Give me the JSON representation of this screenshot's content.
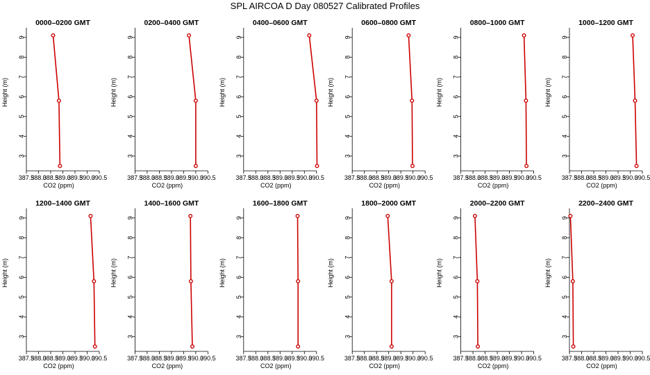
{
  "title": "SPL AIRCOA D  Day 080527  Calibrated Profiles",
  "colors": {
    "series": "#cc0000",
    "axis": "#000000"
  },
  "chart_data": [
    {
      "type": "line",
      "title": "0000–0200 GMT",
      "xlabel": "CO2 (ppm)",
      "ylabel": "Height (m)",
      "x": [
        388.88,
        388.84,
        388.6
      ],
      "y": [
        2.5,
        5.8,
        9.1
      ],
      "xlim": [
        387.5,
        390.5
      ],
      "ylim": [
        2.5,
        9.1
      ],
      "xticks": [
        "387.5",
        "388.0",
        "388.5",
        "389.0",
        "389.5",
        "390.0",
        "390.5"
      ],
      "yticks": [
        "3",
        "4",
        "5",
        "6",
        "7",
        "8",
        "9"
      ]
    },
    {
      "type": "line",
      "title": "0200–0400 GMT",
      "xlabel": "CO2 (ppm)",
      "ylabel": "Height (m)",
      "x": [
        390.0,
        390.0,
        389.72
      ],
      "y": [
        2.5,
        5.8,
        9.1
      ],
      "xlim": [
        387.5,
        390.5
      ],
      "ylim": [
        2.5,
        9.1
      ],
      "xticks": [
        "387.5",
        "388.0",
        "388.5",
        "389.0",
        "389.5",
        "390.0",
        "390.5"
      ],
      "yticks": [
        "3",
        "4",
        "5",
        "6",
        "7",
        "8",
        "9"
      ]
    },
    {
      "type": "line",
      "title": "0400–0600 GMT",
      "xlabel": "CO2 (ppm)",
      "ylabel": "Height (m)",
      "x": [
        390.52,
        390.5,
        390.2
      ],
      "y": [
        2.5,
        5.8,
        9.1
      ],
      "xlim": [
        387.5,
        390.5
      ],
      "ylim": [
        2.5,
        9.1
      ],
      "xticks": [
        "387.5",
        "388.0",
        "388.5",
        "389.0",
        "389.5",
        "390.0",
        "390.5"
      ],
      "yticks": [
        "3",
        "4",
        "5",
        "6",
        "7",
        "8",
        "9"
      ]
    },
    {
      "type": "line",
      "title": "0600–0800 GMT",
      "xlabel": "CO2 (ppm)",
      "ylabel": "Height (m)",
      "x": [
        389.98,
        389.96,
        389.82
      ],
      "y": [
        2.5,
        5.8,
        9.1
      ],
      "xlim": [
        387.5,
        390.5
      ],
      "ylim": [
        2.5,
        9.1
      ],
      "xticks": [
        "387.5",
        "388.0",
        "388.5",
        "389.0",
        "389.5",
        "390.0",
        "390.5"
      ],
      "yticks": [
        "3",
        "4",
        "5",
        "6",
        "7",
        "8",
        "9"
      ]
    },
    {
      "type": "line",
      "title": "0800–1000 GMT",
      "xlabel": "CO2 (ppm)",
      "ylabel": "Height (m)",
      "x": [
        390.2,
        390.18,
        390.1
      ],
      "y": [
        2.5,
        5.8,
        9.1
      ],
      "xlim": [
        387.5,
        390.5
      ],
      "ylim": [
        2.5,
        9.1
      ],
      "xticks": [
        "387.5",
        "388.0",
        "388.5",
        "389.0",
        "389.5",
        "390.0",
        "390.5"
      ],
      "yticks": [
        "3",
        "4",
        "5",
        "6",
        "7",
        "8",
        "9"
      ]
    },
    {
      "type": "line",
      "title": "1000–1200 GMT",
      "xlabel": "CO2 (ppm)",
      "ylabel": "Height (m)",
      "x": [
        390.26,
        390.2,
        390.1
      ],
      "y": [
        2.5,
        5.8,
        9.1
      ],
      "xlim": [
        387.5,
        390.5
      ],
      "ylim": [
        2.5,
        9.1
      ],
      "xticks": [
        "387.5",
        "388.0",
        "388.5",
        "389.0",
        "389.5",
        "390.0",
        "390.5"
      ],
      "yticks": [
        "3",
        "4",
        "5",
        "6",
        "7",
        "8",
        "9"
      ]
    },
    {
      "type": "line",
      "title": "1200–1400 GMT",
      "xlabel": "CO2 (ppm)",
      "ylabel": "Height (m)",
      "x": [
        390.32,
        390.28,
        390.14
      ],
      "y": [
        2.5,
        5.8,
        9.1
      ],
      "xlim": [
        387.5,
        390.5
      ],
      "ylim": [
        2.5,
        9.1
      ],
      "xticks": [
        "387.5",
        "388.0",
        "388.5",
        "389.0",
        "389.5",
        "390.0",
        "390.5"
      ],
      "yticks": [
        "3",
        "4",
        "5",
        "6",
        "7",
        "8",
        "9"
      ]
    },
    {
      "type": "line",
      "title": "1400–1600 GMT",
      "xlabel": "CO2 (ppm)",
      "ylabel": "Height (m)",
      "x": [
        389.86,
        389.8,
        389.78
      ],
      "y": [
        2.5,
        5.8,
        9.1
      ],
      "xlim": [
        387.5,
        390.5
      ],
      "ylim": [
        2.5,
        9.1
      ],
      "xticks": [
        "387.5",
        "388.0",
        "388.5",
        "389.0",
        "389.5",
        "390.0",
        "390.5"
      ],
      "yticks": [
        "3",
        "4",
        "5",
        "6",
        "7",
        "8",
        "9"
      ]
    },
    {
      "type": "line",
      "title": "1600–1800 GMT",
      "xlabel": "CO2 (ppm)",
      "ylabel": "Height (m)",
      "x": [
        389.74,
        389.74,
        389.72
      ],
      "y": [
        2.5,
        5.8,
        9.1
      ],
      "xlim": [
        387.5,
        390.5
      ],
      "ylim": [
        2.5,
        9.1
      ],
      "xticks": [
        "387.5",
        "388.0",
        "388.5",
        "389.0",
        "389.5",
        "390.0",
        "390.5"
      ],
      "yticks": [
        "3",
        "4",
        "5",
        "6",
        "7",
        "8",
        "9"
      ]
    },
    {
      "type": "line",
      "title": "1800–2000 GMT",
      "xlabel": "CO2 (ppm)",
      "ylabel": "Height (m)",
      "x": [
        389.12,
        389.12,
        388.96
      ],
      "y": [
        2.5,
        5.8,
        9.1
      ],
      "xlim": [
        387.5,
        390.5
      ],
      "ylim": [
        2.5,
        9.1
      ],
      "xticks": [
        "387.5",
        "388.0",
        "388.5",
        "389.0",
        "389.5",
        "390.0",
        "390.5"
      ],
      "yticks": [
        "3",
        "4",
        "5",
        "6",
        "7",
        "8",
        "9"
      ]
    },
    {
      "type": "line",
      "title": "2000–2200 GMT",
      "xlabel": "CO2 (ppm)",
      "ylabel": "Height (m)",
      "x": [
        388.2,
        388.18,
        388.08
      ],
      "y": [
        2.5,
        5.8,
        9.1
      ],
      "xlim": [
        387.5,
        390.5
      ],
      "ylim": [
        2.5,
        9.1
      ],
      "xticks": [
        "387.5",
        "388.0",
        "388.5",
        "389.0",
        "389.5",
        "390.0",
        "390.5"
      ],
      "yticks": [
        "3",
        "4",
        "5",
        "6",
        "7",
        "8",
        "9"
      ]
    },
    {
      "type": "line",
      "title": "2200–2400 GMT",
      "xlabel": "CO2 (ppm)",
      "ylabel": "Height (m)",
      "x": [
        387.66,
        387.64,
        387.54
      ],
      "y": [
        2.5,
        5.8,
        9.1
      ],
      "xlim": [
        387.5,
        390.5
      ],
      "ylim": [
        2.5,
        9.1
      ],
      "xticks": [
        "387.5",
        "388.0",
        "388.5",
        "389.0",
        "389.5",
        "390.0",
        "390.5"
      ],
      "yticks": [
        "3",
        "4",
        "5",
        "6",
        "7",
        "8",
        "9"
      ]
    }
  ]
}
